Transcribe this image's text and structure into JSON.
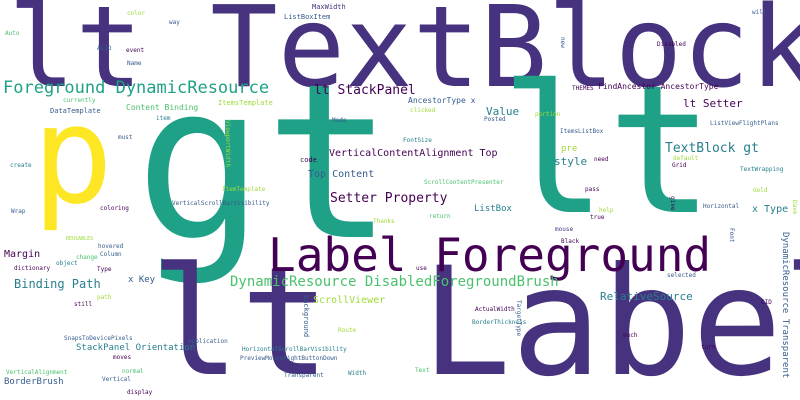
{
  "background_color": "#ffffff",
  "palette": [
    "#440154",
    "#46327e",
    "#365c8d",
    "#277f8e",
    "#1fa187",
    "#4ac16d",
    "#a0da39",
    "#fde725"
  ],
  "words": [
    "lt TextBlock",
    "gt",
    "lt",
    "lt Label",
    "Label Foreground",
    "p",
    "Foreground DynamicResource",
    "lt StackPanel",
    "DynamicResource DisabledForegroundBrush",
    "TextBlock gt",
    "Setter Property",
    "Binding Path",
    "VerticalContentAlignment Top",
    "Top Content",
    "style",
    "Value",
    "lt Setter",
    "RelativeSource",
    "x Type",
    "ListBox",
    "ScrollViewer",
    "x Key",
    "StackPanel Orientation",
    "BorderBrush",
    "Margin",
    "Content Binding",
    "AncestorType x",
    "FindAncestor AncestorType",
    "DynamicResource Transparent",
    "pre",
    "code",
    "ItemsTemplate",
    "ListBoxItem",
    "MaxWidth",
    "DataTemplate",
    "Mode",
    "item",
    "VerticalScrollBarVisibility",
    "ScrollContentPresenter",
    "SnapsToDevicePixels",
    "HorizontalScrollBarVisibility",
    "PreviewMouseRightButtonDown",
    "BorderThickness",
    "ActualWidth",
    "ListViewFlightPlans",
    "TextWrapping",
    "ItemsListBox",
    "Horizontal",
    "Vertical",
    "Transparent",
    "Width",
    "Text",
    "Route",
    "TargetType",
    "background",
    "application",
    "much",
    "turn",
    "selected",
    "mouse",
    "Black",
    "Font",
    "Wrap",
    "coloring",
    "dictionary",
    "object",
    "change",
    "Column",
    "Type",
    "hovered",
    "path",
    "still",
    "REUSABLES",
    "create",
    "must",
    "currently",
    "Name",
    "event",
    "ACID",
    "Auto",
    "color",
    "way",
    "will",
    "new",
    "Disabled",
    "THEMES",
    "Posted",
    "clicked",
    "portion",
    "FontSize",
    "need",
    "default",
    "Grid",
    "pass",
    "help",
    "true",
    "Thanks",
    "return",
    "give",
    "Gold",
    "Dave",
    "moves",
    "normal",
    "display",
    "VerticalAlignment",
    "use",
    "CID",
    "ItemTemplate",
    "ViewportWidth"
  ]
}
